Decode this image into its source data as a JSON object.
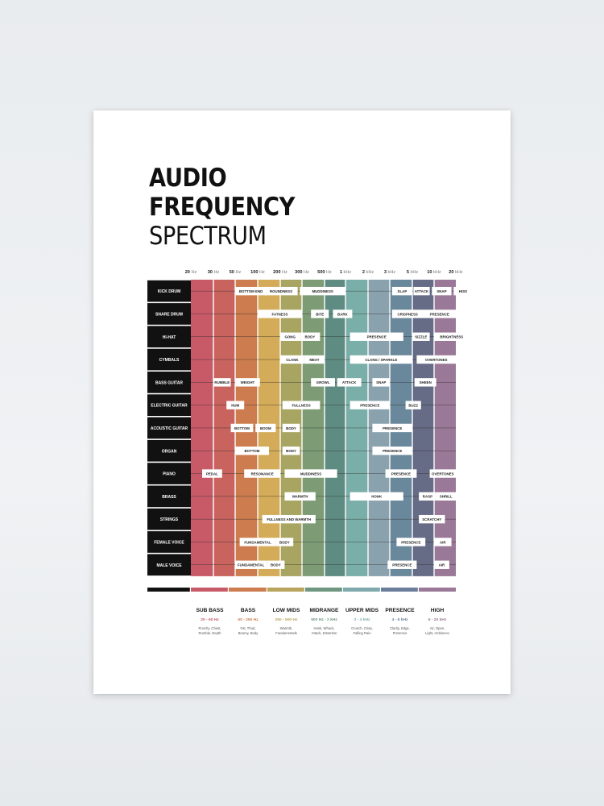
{
  "title": {
    "line1": "AUDIO",
    "line2": "FREQUENCY",
    "line3": "SPECTRUM"
  },
  "frequency_axis": [
    {
      "bold": "20",
      "unit": "Hz"
    },
    {
      "bold": "30",
      "unit": "Hz"
    },
    {
      "bold": "50",
      "unit": "Hz"
    },
    {
      "bold": "100",
      "unit": "Hz"
    },
    {
      "bold": "200",
      "unit": "Hz"
    },
    {
      "bold": "300",
      "unit": "Hz"
    },
    {
      "bold": "500",
      "unit": "Hz"
    },
    {
      "bold": "1",
      "unit": "kHz"
    },
    {
      "bold": "2",
      "unit": "kHz"
    },
    {
      "bold": "3",
      "unit": "kHz"
    },
    {
      "bold": "5",
      "unit": "kHz"
    },
    {
      "bold": "10",
      "unit": "kHz"
    },
    {
      "bold": "20",
      "unit": "kHz"
    }
  ],
  "column_colors": [
    "#c85a68",
    "#c8635e",
    "#cc7c4f",
    "#d4ab58",
    "#a8a461",
    "#7d9c76",
    "#5f8c82",
    "#7aaea8",
    "#8aa2ae",
    "#6a889c",
    "#666b86",
    "#9a7897"
  ],
  "instruments": [
    {
      "name": "KICK DRUM",
      "tags": [
        {
          "label": "BOTTOM END",
          "from": 2,
          "to": 3.4
        },
        {
          "label": "ROUNDNESS",
          "from": 3.3,
          "to": 4.8
        },
        {
          "label": "MUDDINESS",
          "from": 4.9,
          "to": 7
        },
        {
          "label": "SLAP",
          "from": 9.1,
          "to": 10
        },
        {
          "label": "ATTACK",
          "from": 10.05,
          "to": 10.8
        },
        {
          "label": "SNAP",
          "from": 10.9,
          "to": 11.8
        },
        {
          "label": "HISS",
          "from": 11.9,
          "to": 12.75
        }
      ]
    },
    {
      "name": "SNARE DRUM",
      "tags": [
        {
          "label": "FATNESS",
          "from": 3,
          "to": 5
        },
        {
          "label": "BITE",
          "from": 5.4,
          "to": 6.2
        },
        {
          "label": "BARK",
          "from": 6.4,
          "to": 7.3
        },
        {
          "label": "CRISPNESS",
          "from": 9.1,
          "to": 10.5
        },
        {
          "label": "PRESENCE",
          "from": 10.5,
          "to": 12
        }
      ]
    },
    {
      "name": "HI-HAT",
      "tags": [
        {
          "label": "GONG",
          "from": 4,
          "to": 4.9
        },
        {
          "label": "BODY",
          "from": 4.9,
          "to": 5.8
        },
        {
          "label": "PRESENCE",
          "from": 7.2,
          "to": 9.6
        },
        {
          "label": "SIZZLE",
          "from": 10,
          "to": 10.8
        },
        {
          "label": "BRIGHTNESS",
          "from": 11,
          "to": 12.6
        }
      ]
    },
    {
      "name": "CYMBALS",
      "tags": [
        {
          "label": "CLANK",
          "from": 4,
          "to": 5.1
        },
        {
          "label": "MEAT",
          "from": 5.1,
          "to": 6
        },
        {
          "label": "CLANG / SPARKLE",
          "from": 7.2,
          "to": 10
        },
        {
          "label": "OVERTONES",
          "from": 10.2,
          "to": 12
        }
      ]
    },
    {
      "name": "BASS GUITAR",
      "tags": [
        {
          "label": "RUMBLE",
          "from": 1,
          "to": 1.8
        },
        {
          "label": "WEIGHT",
          "from": 2,
          "to": 3.1
        },
        {
          "label": "GROWL",
          "from": 5.4,
          "to": 6.5
        },
        {
          "label": "ATTACK",
          "from": 6.6,
          "to": 7.7
        },
        {
          "label": "SNAP",
          "from": 8.2,
          "to": 9
        },
        {
          "label": "SHEEN",
          "from": 10.1,
          "to": 11.1
        }
      ]
    },
    {
      "name": "ELECTRIC GUITAR",
      "tags": [
        {
          "label": "HUM",
          "from": 1.6,
          "to": 2.4
        },
        {
          "label": "FULLNESS",
          "from": 4.1,
          "to": 5.8
        },
        {
          "label": "PRESENCE",
          "from": 7.2,
          "to": 9
        },
        {
          "label": "BUZZ",
          "from": 9.7,
          "to": 10.4
        }
      ]
    },
    {
      "name": "ACOUSTIC GUITAR",
      "tags": [
        {
          "label": "BOTTOM",
          "from": 1.8,
          "to": 2.8
        },
        {
          "label": "BOOM",
          "from": 2.9,
          "to": 3.8
        },
        {
          "label": "BODY",
          "from": 4.1,
          "to": 4.9
        },
        {
          "label": "PRESENCE",
          "from": 8.2,
          "to": 10
        }
      ]
    },
    {
      "name": "ORGAN",
      "tags": [
        {
          "label": "BOTTOM",
          "from": 2,
          "to": 3.5
        },
        {
          "label": "BODY",
          "from": 4.1,
          "to": 4.9
        },
        {
          "label": "PRESENCE",
          "from": 8.2,
          "to": 10
        }
      ]
    },
    {
      "name": "PIANO",
      "tags": [
        {
          "label": "PEDAL",
          "from": 0.5,
          "to": 1.4
        },
        {
          "label": "RESONANCE",
          "from": 2.4,
          "to": 4
        },
        {
          "label": "MUDDINESS",
          "from": 4.2,
          "to": 6.6
        },
        {
          "label": "PRESENCE",
          "from": 8.8,
          "to": 10.2
        },
        {
          "label": "OVERTONES",
          "from": 10.8,
          "to": 12
        }
      ]
    },
    {
      "name": "BRASS",
      "tags": [
        {
          "label": "WARMTH",
          "from": 4.2,
          "to": 5.6
        },
        {
          "label": "HONK",
          "from": 7.2,
          "to": 9.6
        },
        {
          "label": "RASP",
          "from": 10.3,
          "to": 11.1
        },
        {
          "label": "SHRILL",
          "from": 11.1,
          "to": 12
        }
      ]
    },
    {
      "name": "STRINGS",
      "tags": [
        {
          "label": "FULLNESS AND WARMTH",
          "from": 3.2,
          "to": 5.6
        },
        {
          "label": "SCRATCHY",
          "from": 10.3,
          "to": 11.5
        }
      ]
    },
    {
      "name": "FEMALE VOICE",
      "tags": [
        {
          "label": "FUNDAMENTAL",
          "from": 2.2,
          "to": 3.8
        },
        {
          "label": "BODY",
          "from": 3.8,
          "to": 4.6
        },
        {
          "label": "PRESENCE",
          "from": 9.3,
          "to": 10.6
        },
        {
          "label": "AIR",
          "from": 11,
          "to": 11.8
        }
      ]
    },
    {
      "name": "MALE VOICE",
      "tags": [
        {
          "label": "FUNDAMENTAL",
          "from": 2,
          "to": 3.4
        },
        {
          "label": "BODY",
          "from": 3.4,
          "to": 4.2
        },
        {
          "label": "PRESENCE",
          "from": 8.9,
          "to": 10.2
        },
        {
          "label": "AIR",
          "from": 11,
          "to": 11.7
        }
      ]
    }
  ],
  "legend_bar_colors": [
    "#111111",
    "#c85a68",
    "#cc7c4f",
    "#b8a45c",
    "#6f9680",
    "#7fa9ac",
    "#6a7d9a",
    "#9a7897"
  ],
  "bands": [
    {
      "name": "SUB BASS",
      "range": "20 - 60 Hz",
      "range_color": "#c85a68",
      "desc1": "Punchy, Chest,",
      "desc2": "Rumble, Depth"
    },
    {
      "name": "BASS",
      "range": "60 - 250 Hz",
      "range_color": "#cc7c4f",
      "desc1": "Fat, Thud,",
      "desc2": "Boomy, Body"
    },
    {
      "name": "LOW MIDS",
      "range": "250 - 500 Hz",
      "range_color": "#b8a45c",
      "desc1": "Warmth,",
      "desc2": "Fundamentals"
    },
    {
      "name": "MIDRANGE",
      "range": "500 Hz - 2 kHz",
      "range_color": "#6f9680",
      "desc1": "Honk, Whack,",
      "desc2": "Attack, Distortion"
    },
    {
      "name": "UPPER MIDS",
      "range": "2 - 4 kHz",
      "range_color": "#7fa9ac",
      "desc1": "Crunch, Crisp,",
      "desc2": "Falling Rain"
    },
    {
      "name": "PRESENCE",
      "range": "4 - 6 kHz",
      "range_color": "#6a7d9a",
      "desc1": "Clarity, Edge,",
      "desc2": "Presence"
    },
    {
      "name": "HIGH",
      "range": "6 - 20 kHz",
      "range_color": "#9a7897",
      "desc1": "Air, Open,",
      "desc2": "Light, Ambience"
    }
  ]
}
